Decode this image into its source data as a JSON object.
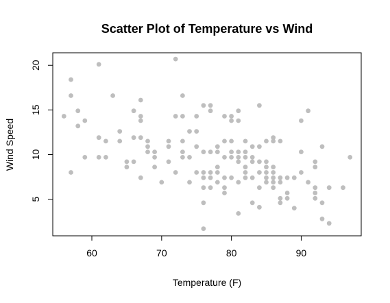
{
  "chart_data": {
    "type": "scatter",
    "title": "Scatter Plot of Temperature vs Wind",
    "xlabel": "Temperature (F)",
    "ylabel": "Wind Speed",
    "xlim": [
      54.4,
      98.6
    ],
    "ylim": [
      0.9,
      21.4
    ],
    "xticks": [
      60,
      70,
      80,
      90
    ],
    "yticks": [
      5,
      10,
      15,
      20
    ],
    "grid": false,
    "legend": "none",
    "point_color": "#bebebe",
    "points": [
      [
        56,
        14.3
      ],
      [
        57,
        18.4
      ],
      [
        57,
        16.6
      ],
      [
        57,
        8.0
      ],
      [
        58,
        14.9
      ],
      [
        58,
        13.2
      ],
      [
        59,
        13.8
      ],
      [
        59,
        9.7
      ],
      [
        61,
        20.1
      ],
      [
        61,
        11.9
      ],
      [
        61,
        9.7
      ],
      [
        62,
        11.5
      ],
      [
        62,
        9.7
      ],
      [
        63,
        16.6
      ],
      [
        64,
        12.6
      ],
      [
        64,
        11.5
      ],
      [
        65,
        9.2
      ],
      [
        65,
        8.6
      ],
      [
        66,
        14.9
      ],
      [
        66,
        11.9
      ],
      [
        66,
        9.2
      ],
      [
        67,
        16.1
      ],
      [
        67,
        14.3
      ],
      [
        67,
        13.8
      ],
      [
        67,
        11.9
      ],
      [
        67,
        7.4
      ],
      [
        68,
        11.5
      ],
      [
        68,
        10.9
      ],
      [
        68,
        10.3
      ],
      [
        69,
        10.3
      ],
      [
        69,
        9.7
      ],
      [
        69,
        8.6
      ],
      [
        70,
        6.9
      ],
      [
        71,
        11.5
      ],
      [
        71,
        10.9
      ],
      [
        71,
        9.2
      ],
      [
        72,
        20.7
      ],
      [
        72,
        14.3
      ],
      [
        72,
        8.0
      ],
      [
        73,
        16.6
      ],
      [
        73,
        14.3
      ],
      [
        73,
        11.5
      ],
      [
        73,
        10.3
      ],
      [
        73,
        9.7
      ],
      [
        74,
        12.6
      ],
      [
        74,
        9.7
      ],
      [
        74,
        6.9
      ],
      [
        75,
        14.3
      ],
      [
        75,
        12.6
      ],
      [
        75,
        10.9
      ],
      [
        75,
        8.0
      ],
      [
        76,
        15.5
      ],
      [
        76,
        10.3
      ],
      [
        76,
        8.0
      ],
      [
        76,
        7.4
      ],
      [
        76,
        6.3
      ],
      [
        76,
        4.6
      ],
      [
        76,
        1.7
      ],
      [
        77,
        15.5
      ],
      [
        77,
        14.9
      ],
      [
        77,
        10.3
      ],
      [
        77,
        8.0
      ],
      [
        77,
        7.4
      ],
      [
        77,
        6.3
      ],
      [
        78,
        10.9
      ],
      [
        78,
        10.3
      ],
      [
        78,
        8.6
      ],
      [
        78,
        8.0
      ],
      [
        78,
        6.9
      ],
      [
        79,
        14.3
      ],
      [
        79,
        11.5
      ],
      [
        79,
        9.7
      ],
      [
        79,
        7.4
      ],
      [
        79,
        6.3
      ],
      [
        79,
        5.7
      ],
      [
        80,
        14.3
      ],
      [
        80,
        13.8
      ],
      [
        80,
        11.5
      ],
      [
        80,
        10.3
      ],
      [
        80,
        9.7
      ],
      [
        80,
        7.4
      ],
      [
        81,
        14.9
      ],
      [
        81,
        13.8
      ],
      [
        81,
        10.3
      ],
      [
        81,
        9.7
      ],
      [
        81,
        9.2
      ],
      [
        81,
        6.9
      ],
      [
        81,
        3.4
      ],
      [
        82,
        11.5
      ],
      [
        82,
        10.3
      ],
      [
        82,
        9.7
      ],
      [
        82,
        8.6
      ],
      [
        82,
        8.0
      ],
      [
        82,
        7.4
      ],
      [
        83,
        10.9
      ],
      [
        83,
        9.7
      ],
      [
        83,
        9.2
      ],
      [
        83,
        7.4
      ],
      [
        83,
        4.6
      ],
      [
        84,
        15.5
      ],
      [
        84,
        10.9
      ],
      [
        84,
        9.2
      ],
      [
        84,
        8.0
      ],
      [
        84,
        6.3
      ],
      [
        84,
        4.1
      ],
      [
        85,
        11.5
      ],
      [
        85,
        9.2
      ],
      [
        85,
        8.6
      ],
      [
        85,
        8.0
      ],
      [
        85,
        7.4
      ],
      [
        85,
        6.9
      ],
      [
        86,
        11.9
      ],
      [
        86,
        11.5
      ],
      [
        86,
        8.6
      ],
      [
        86,
        8.0
      ],
      [
        86,
        7.4
      ],
      [
        86,
        6.9
      ],
      [
        86,
        6.3
      ],
      [
        87,
        11.5
      ],
      [
        87,
        7.4
      ],
      [
        87,
        6.9
      ],
      [
        87,
        5.1
      ],
      [
        87,
        4.6
      ],
      [
        88,
        7.4
      ],
      [
        88,
        5.7
      ],
      [
        88,
        5.1
      ],
      [
        89,
        7.4
      ],
      [
        89,
        4.0
      ],
      [
        90,
        13.8
      ],
      [
        90,
        10.3
      ],
      [
        90,
        8.0
      ],
      [
        91,
        14.9
      ],
      [
        91,
        6.9
      ],
      [
        92,
        9.2
      ],
      [
        92,
        8.6
      ],
      [
        92,
        6.3
      ],
      [
        92,
        5.7
      ],
      [
        92,
        5.1
      ],
      [
        93,
        10.9
      ],
      [
        93,
        4.6
      ],
      [
        93,
        2.8
      ],
      [
        94,
        6.3
      ],
      [
        94,
        2.3
      ],
      [
        96,
        6.3
      ],
      [
        97,
        9.7
      ]
    ]
  }
}
